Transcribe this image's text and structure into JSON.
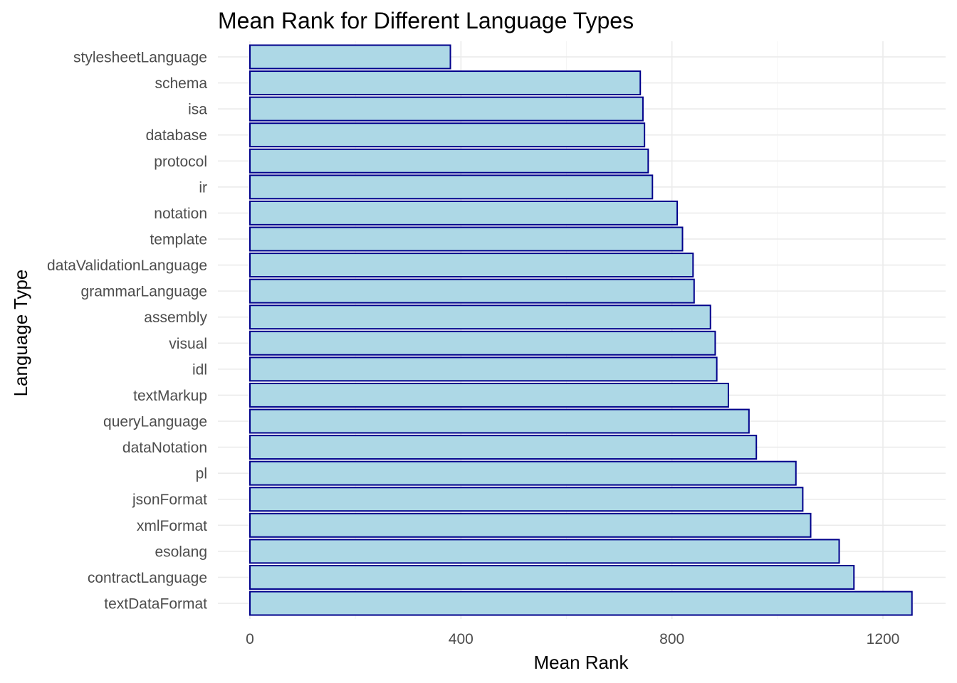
{
  "chart_data": {
    "type": "bar",
    "orientation": "horizontal",
    "title": "Mean Rank for Different Language Types",
    "xlabel": "Mean Rank",
    "ylabel": "Language Type",
    "xlim": [
      0,
      1320
    ],
    "xticks": [
      0,
      400,
      800,
      1200
    ],
    "grid": true,
    "categories": [
      "stylesheetLanguage",
      "schema",
      "isa",
      "database",
      "protocol",
      "ir",
      "notation",
      "template",
      "dataValidationLanguage",
      "grammarLanguage",
      "assembly",
      "visual",
      "idl",
      "textMarkup",
      "queryLanguage",
      "dataNotation",
      "pl",
      "jsonFormat",
      "xmlFormat",
      "esolang",
      "contractLanguage",
      "textDataFormat"
    ],
    "values": [
      380,
      740,
      745,
      748,
      755,
      763,
      810,
      820,
      840,
      842,
      873,
      882,
      885,
      907,
      946,
      960,
      1035,
      1048,
      1063,
      1117,
      1145,
      1255
    ],
    "colors": {
      "bar_fill": "#add8e6",
      "bar_outline": "#00008b"
    }
  }
}
